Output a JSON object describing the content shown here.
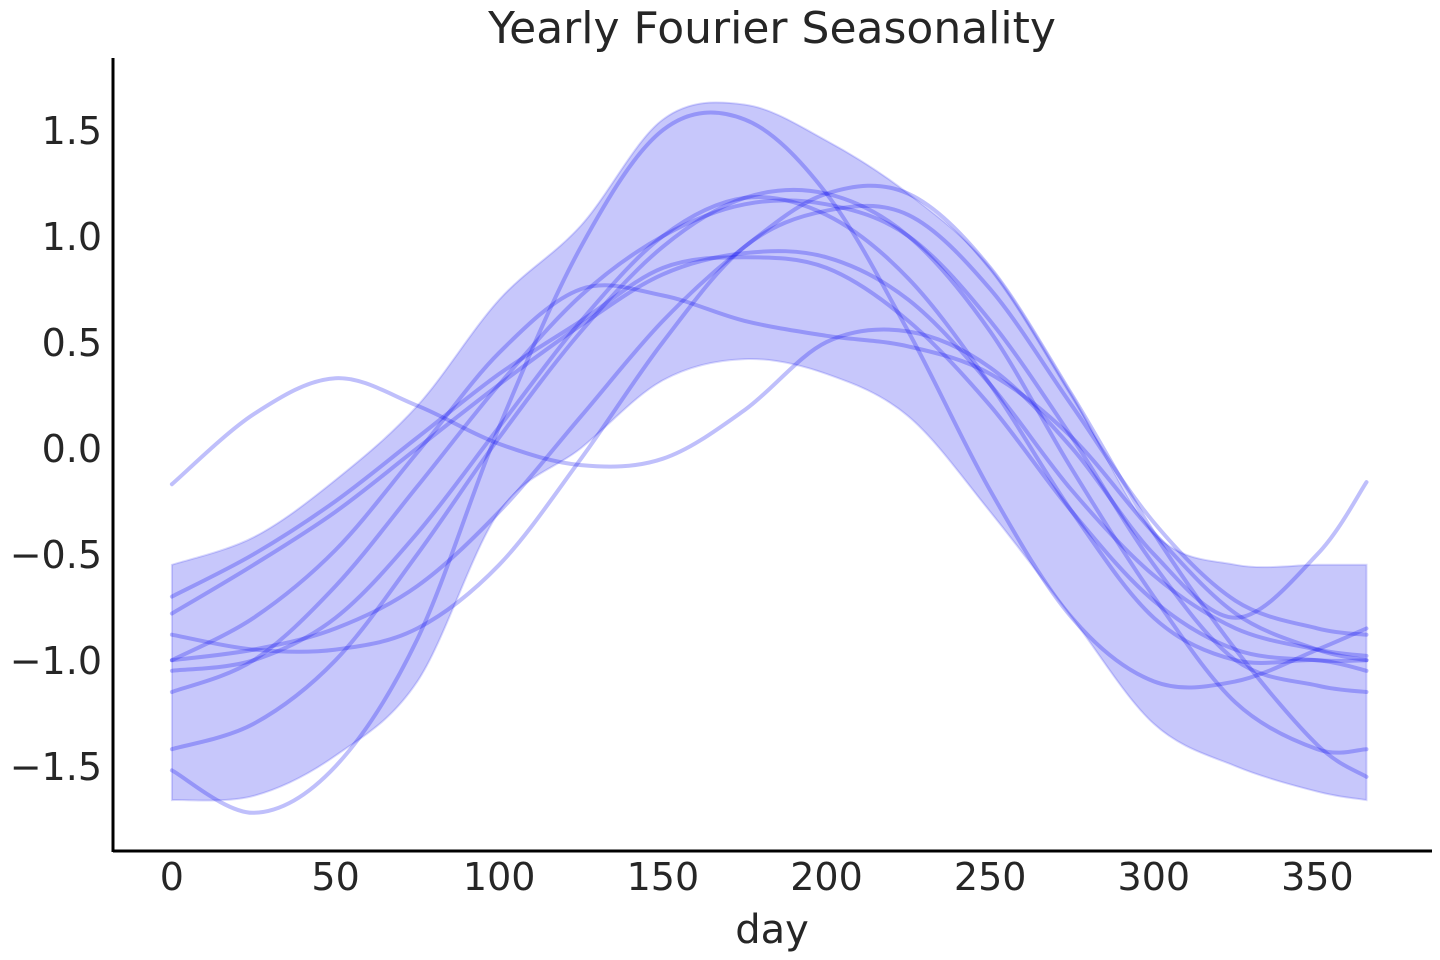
{
  "chart_data": {
    "type": "line",
    "title": "Yearly Fourier Seasonality",
    "xlabel": "day",
    "ylabel": "",
    "xlim": [
      -18,
      385
    ],
    "ylim": [
      -1.9,
      1.84
    ],
    "xticks": [
      0,
      50,
      100,
      150,
      200,
      250,
      300,
      350
    ],
    "xtick_labels": [
      "0",
      "50",
      "100",
      "150",
      "200",
      "250",
      "300",
      "350"
    ],
    "yticks": [
      -1.5,
      -1.0,
      -0.5,
      0.0,
      0.5,
      1.0,
      1.5
    ],
    "ytick_labels": [
      "−1.5",
      "−1.0",
      "−0.5",
      "0.0",
      "0.5",
      "1.0",
      "1.5"
    ],
    "grid": false,
    "legend": "none",
    "color": "#0000ee",
    "band": {
      "x": [
        0,
        25,
        50,
        75,
        100,
        125,
        150,
        175,
        200,
        225,
        250,
        275,
        300,
        325,
        350,
        365
      ],
      "upper": [
        -0.55,
        -0.42,
        -0.15,
        0.2,
        0.7,
        1.05,
        1.55,
        1.62,
        1.45,
        1.2,
        0.85,
        0.25,
        -0.4,
        -0.55,
        -0.55,
        -0.55
      ],
      "lower": [
        -1.66,
        -1.64,
        -1.45,
        -1.1,
        -0.3,
        0.0,
        0.32,
        0.42,
        0.35,
        0.15,
        -0.3,
        -0.8,
        -1.3,
        -1.5,
        -1.62,
        -1.66
      ]
    },
    "series": [
      {
        "x": [
          0,
          25,
          50,
          75,
          100,
          125,
          150,
          175,
          200,
          225,
          250,
          275,
          300,
          325,
          350,
          365
        ],
        "values": [
          -0.17,
          0.16,
          0.33,
          0.2,
          0.02,
          -0.08,
          -0.05,
          0.18,
          0.5,
          0.55,
          0.38,
          0.0,
          -0.5,
          -0.8,
          -0.5,
          -0.16
        ]
      },
      {
        "x": [
          0,
          25,
          50,
          75,
          100,
          125,
          150,
          175,
          200,
          225,
          250,
          275,
          300,
          325,
          350,
          365
        ],
        "values": [
          -1.52,
          -1.72,
          -1.5,
          -0.9,
          0.1,
          0.95,
          1.5,
          1.55,
          1.2,
          0.55,
          -0.2,
          -0.8,
          -1.1,
          -1.1,
          -0.95,
          -0.85
        ]
      },
      {
        "x": [
          0,
          25,
          50,
          75,
          100,
          125,
          150,
          175,
          200,
          225,
          250,
          275,
          300,
          325,
          350,
          365
        ],
        "values": [
          -1.0,
          -0.8,
          -0.48,
          -0.02,
          0.45,
          0.75,
          0.72,
          0.6,
          0.53,
          0.48,
          0.35,
          0.05,
          -0.4,
          -0.78,
          -0.95,
          -1.0
        ]
      },
      {
        "x": [
          0,
          25,
          50,
          75,
          100,
          125,
          150,
          175,
          200,
          225,
          250,
          275,
          300,
          325,
          350,
          365
        ],
        "values": [
          -0.7,
          -0.5,
          -0.25,
          0.05,
          0.35,
          0.6,
          0.85,
          0.9,
          0.85,
          0.6,
          0.2,
          -0.3,
          -0.72,
          -0.95,
          -1.0,
          -1.0
        ]
      },
      {
        "x": [
          0,
          25,
          50,
          75,
          100,
          125,
          150,
          175,
          200,
          225,
          250,
          275,
          300,
          325,
          350,
          365
        ],
        "values": [
          -0.78,
          -0.55,
          -0.3,
          0.0,
          0.3,
          0.58,
          0.82,
          0.92,
          0.9,
          0.7,
          0.3,
          -0.2,
          -0.6,
          -0.85,
          -0.95,
          -0.98
        ]
      },
      {
        "x": [
          0,
          25,
          50,
          75,
          100,
          125,
          150,
          175,
          200,
          225,
          250,
          275,
          300,
          325,
          350,
          365
        ],
        "values": [
          -0.88,
          -0.95,
          -0.95,
          -0.85,
          -0.55,
          -0.05,
          0.5,
          0.95,
          1.12,
          1.1,
          0.75,
          0.2,
          -0.35,
          -0.72,
          -0.85,
          -0.88
        ]
      },
      {
        "x": [
          0,
          25,
          50,
          75,
          100,
          125,
          150,
          175,
          200,
          225,
          250,
          275,
          300,
          325,
          350,
          365
        ],
        "values": [
          -1.05,
          -1.0,
          -0.8,
          -0.4,
          0.1,
          0.6,
          1.0,
          1.18,
          1.1,
          0.8,
          0.3,
          -0.3,
          -0.8,
          -1.0,
          -1.0,
          -1.05
        ]
      },
      {
        "x": [
          0,
          25,
          50,
          75,
          100,
          125,
          150,
          175,
          200,
          225,
          250,
          275,
          300,
          325,
          350,
          365
        ],
        "values": [
          -1.15,
          -1.0,
          -0.65,
          -0.18,
          0.3,
          0.72,
          1.0,
          1.15,
          1.15,
          1.0,
          0.6,
          0.05,
          -0.55,
          -1.0,
          -1.12,
          -1.15
        ]
      },
      {
        "x": [
          0,
          25,
          50,
          75,
          100,
          125,
          150,
          175,
          200,
          225,
          250,
          275,
          300,
          325,
          350,
          365
        ],
        "values": [
          -1.42,
          -1.3,
          -1.0,
          -0.5,
          0.05,
          0.55,
          0.95,
          1.18,
          1.2,
          1.0,
          0.55,
          -0.1,
          -0.7,
          -1.2,
          -1.42,
          -1.42
        ]
      },
      {
        "x": [
          0,
          25,
          50,
          75,
          100,
          125,
          150,
          175,
          200,
          225,
          250,
          275,
          300,
          325,
          350,
          365
        ],
        "values": [
          -1.0,
          -0.95,
          -0.85,
          -0.65,
          -0.3,
          0.15,
          0.6,
          0.95,
          1.2,
          1.2,
          0.85,
          0.25,
          -0.4,
          -0.95,
          -1.4,
          -1.55
        ]
      }
    ]
  }
}
